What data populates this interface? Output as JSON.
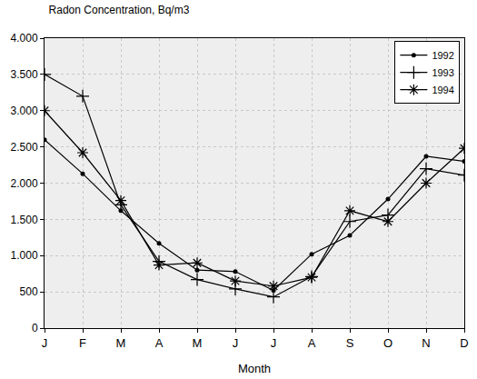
{
  "chart_data": {
    "type": "line",
    "title": "Radon Concentration, Bq/m3",
    "x_label": "Month",
    "categories": [
      "J",
      "F",
      "M",
      "A",
      "M",
      "J",
      "J",
      "A",
      "S",
      "O",
      "N",
      "D"
    ],
    "series": [
      {
        "name": "1992",
        "color": "#000000",
        "marker": "dot",
        "line_style": "solid",
        "values": [
          2600,
          2130,
          1620,
          1170,
          800,
          780,
          520,
          1020,
          1280,
          1780,
          2370,
          2300
        ]
      },
      {
        "name": "1993",
        "color": "#000000",
        "marker": "cross",
        "line_style": "solid",
        "values": [
          3500,
          3200,
          1700,
          920,
          670,
          540,
          430,
          710,
          1470,
          1560,
          2200,
          2110
        ]
      },
      {
        "name": "1994",
        "color": "#000000",
        "marker": "asterisk",
        "line_style": "solid",
        "values": [
          3000,
          2420,
          1760,
          870,
          900,
          650,
          580,
          700,
          1620,
          1470,
          2000,
          2480
        ]
      }
    ],
    "ylim": [
      0,
      4000
    ],
    "yticks": [
      0,
      500,
      {
        "value": 1000,
        "label": "1.000"
      },
      {
        "value": 1500,
        "label": "1.500"
      },
      {
        "value": 2000,
        "label": "2.000"
      },
      {
        "value": 2500,
        "label": "2.500"
      },
      {
        "value": 3000,
        "label": "3.000"
      },
      {
        "value": 3500,
        "label": "3.500"
      },
      {
        "value": 4000,
        "label": "4.000"
      }
    ],
    "grid": true,
    "legend": "top-right"
  }
}
